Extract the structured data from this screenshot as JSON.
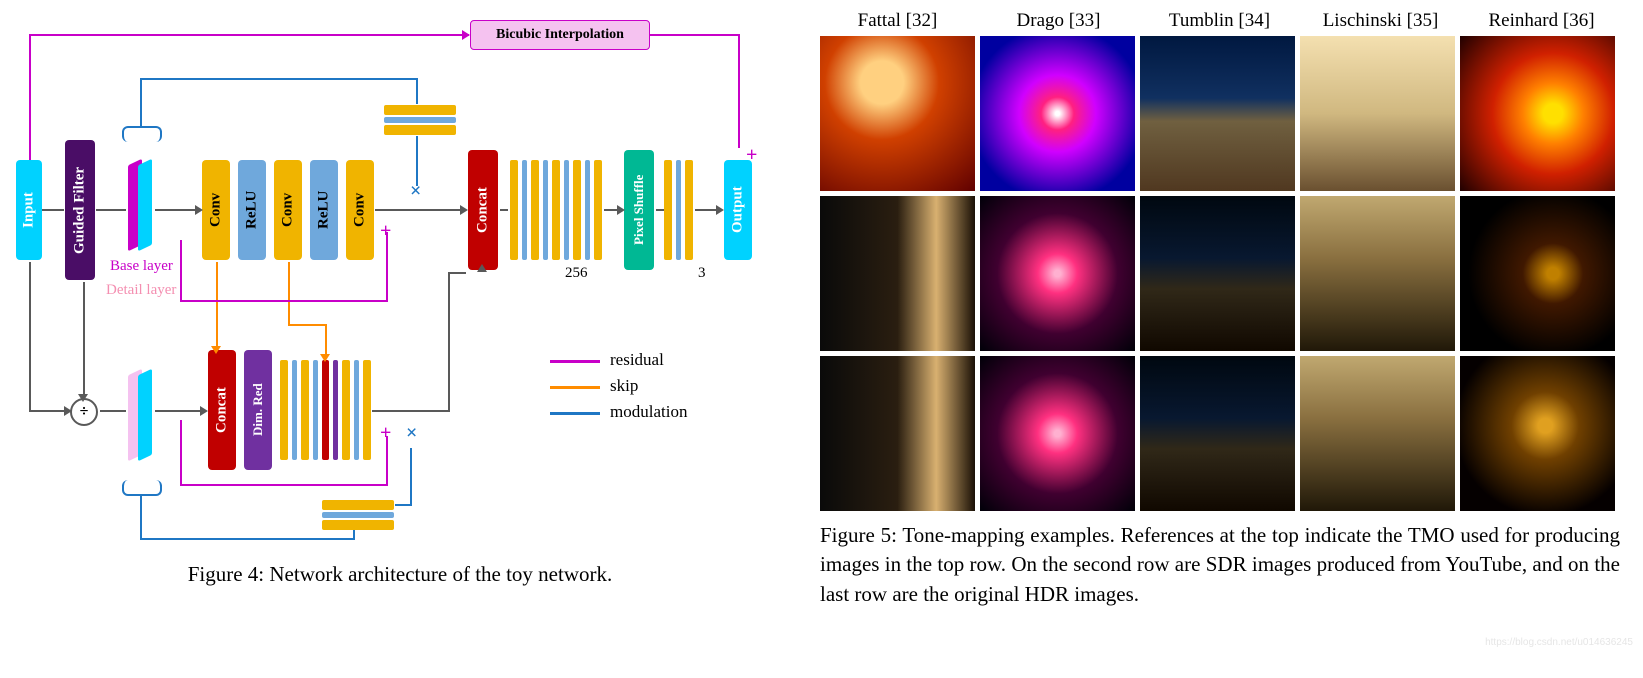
{
  "figure4": {
    "caption": "Figure 4: Network architecture of the toy network.",
    "blocks": {
      "input": {
        "label": "Input",
        "color": "#00d2ff"
      },
      "guided_filter": {
        "label": "Guided Filter",
        "color": "#4a0d66"
      },
      "bicubic": {
        "label": "Bicubic Interpolation",
        "bg": "#f5c2f0",
        "border": "#c800c8"
      },
      "conv": {
        "label": "Conv",
        "color": "#f0b400"
      },
      "relu": {
        "label": "ReLU",
        "color": "#6fa8dc"
      },
      "concat": {
        "label": "Concat",
        "color": "#c00000"
      },
      "dimred": {
        "label": "Dim. Red",
        "color": "#7030a0"
      },
      "pixel_shuffle": {
        "label": "Pixel Shuffle",
        "color": "#00b894"
      },
      "output": {
        "label": "Output",
        "color": "#00d2ff"
      }
    },
    "layers": {
      "base": {
        "label": "Base layer",
        "color": "#c800c8"
      },
      "detail": {
        "label": "Detail layer",
        "color": "#f48fb1"
      }
    },
    "legend": {
      "residual": {
        "label": "residual",
        "color": "#c800c8"
      },
      "skip": {
        "label": "skip",
        "color": "#ff8c00"
      },
      "modulation": {
        "label": "modulation",
        "color": "#1f77c4"
      }
    },
    "symbols": {
      "divide": "÷",
      "plus": "+",
      "multiply": "×"
    },
    "numbers": {
      "channels_256": "256",
      "channels_3": "3"
    },
    "colors": {
      "arrow": "#595959",
      "cyan": "#00d2ff",
      "magenta": "#c800c8",
      "pink": "#f5c2f0"
    }
  },
  "figure5": {
    "caption": "Figure 5: Tone-mapping examples. References at the top indicate the TMO used for producing images in the top row. On the second row are SDR images produced from YouTube, and on the last row are the original HDR images.",
    "columns": [
      {
        "label": "Fattal [32]"
      },
      {
        "label": "Drago [33]"
      },
      {
        "label": "Tumblin [34]"
      },
      {
        "label": "Lischinski [35]"
      },
      {
        "label": "Reinhard [36]"
      }
    ],
    "thumbnails": {
      "rows": 3,
      "cols": 5,
      "cells": [
        {
          "row": 0,
          "col": 0,
          "gradient": "radial-gradient(circle at 40% 30%, #ffd080 15%, #d04000 40%, #600000 100%)"
        },
        {
          "row": 0,
          "col": 1,
          "gradient": "radial-gradient(circle at 50% 50%, #ffffff 2%, #ff2080 15%, #d000ff 35%, #0000a0 80%)"
        },
        {
          "row": 0,
          "col": 2,
          "gradient": "linear-gradient(180deg, #001840 0%, #103060 40%, #706040 55%, #503820 100%)"
        },
        {
          "row": 0,
          "col": 3,
          "gradient": "linear-gradient(180deg, #f4e0b0 0%, #d0b880 50%, #6a5030 100%)"
        },
        {
          "row": 0,
          "col": 4,
          "gradient": "radial-gradient(circle at 60% 50%, #ffe000 8%, #ff8000 25%, #d02000 50%, #200000 100%)"
        },
        {
          "row": 1,
          "col": 0,
          "gradient": "linear-gradient(90deg, #0a0a0a 0%, #2a1e10 50%, #d8b070 75%, #1a1006 100%)"
        },
        {
          "row": 1,
          "col": 1,
          "gradient": "radial-gradient(circle at 50% 50%, #ffb0d0 3%, #ff3080 18%, #400030 55%, #000008 100%)"
        },
        {
          "row": 1,
          "col": 2,
          "gradient": "linear-gradient(180deg, #000810 0%, #081830 40%, #302818 60%, #100800 100%)"
        },
        {
          "row": 1,
          "col": 3,
          "gradient": "linear-gradient(180deg, #c0a870 0%, #8a7040 40%, #201808 100%)"
        },
        {
          "row": 1,
          "col": 4,
          "gradient": "radial-gradient(circle at 60% 50%, #c08000 5%, #401800 25%, #000000 70%)"
        },
        {
          "row": 2,
          "col": 0,
          "gradient": "linear-gradient(90deg, #0a0a0a 0%, #2a1e10 50%, #d8b070 75%, #1a1006 100%)"
        },
        {
          "row": 2,
          "col": 1,
          "gradient": "radial-gradient(circle at 50% 50%, #ffb0d0 3%, #ff3080 18%, #400030 55%, #000008 100%)"
        },
        {
          "row": 2,
          "col": 2,
          "gradient": "linear-gradient(180deg, #000810 0%, #081830 40%, #302818 60%, #100800 100%)"
        },
        {
          "row": 2,
          "col": 3,
          "gradient": "linear-gradient(180deg, #c0a870 0%, #8a7040 40%, #201808 100%)"
        },
        {
          "row": 2,
          "col": 4,
          "gradient": "radial-gradient(circle at 55% 45%, #e0a020 6%, #704000 28%, #050000 75%)"
        }
      ]
    }
  },
  "watermark": "https://blog.csdn.net/u014636245"
}
